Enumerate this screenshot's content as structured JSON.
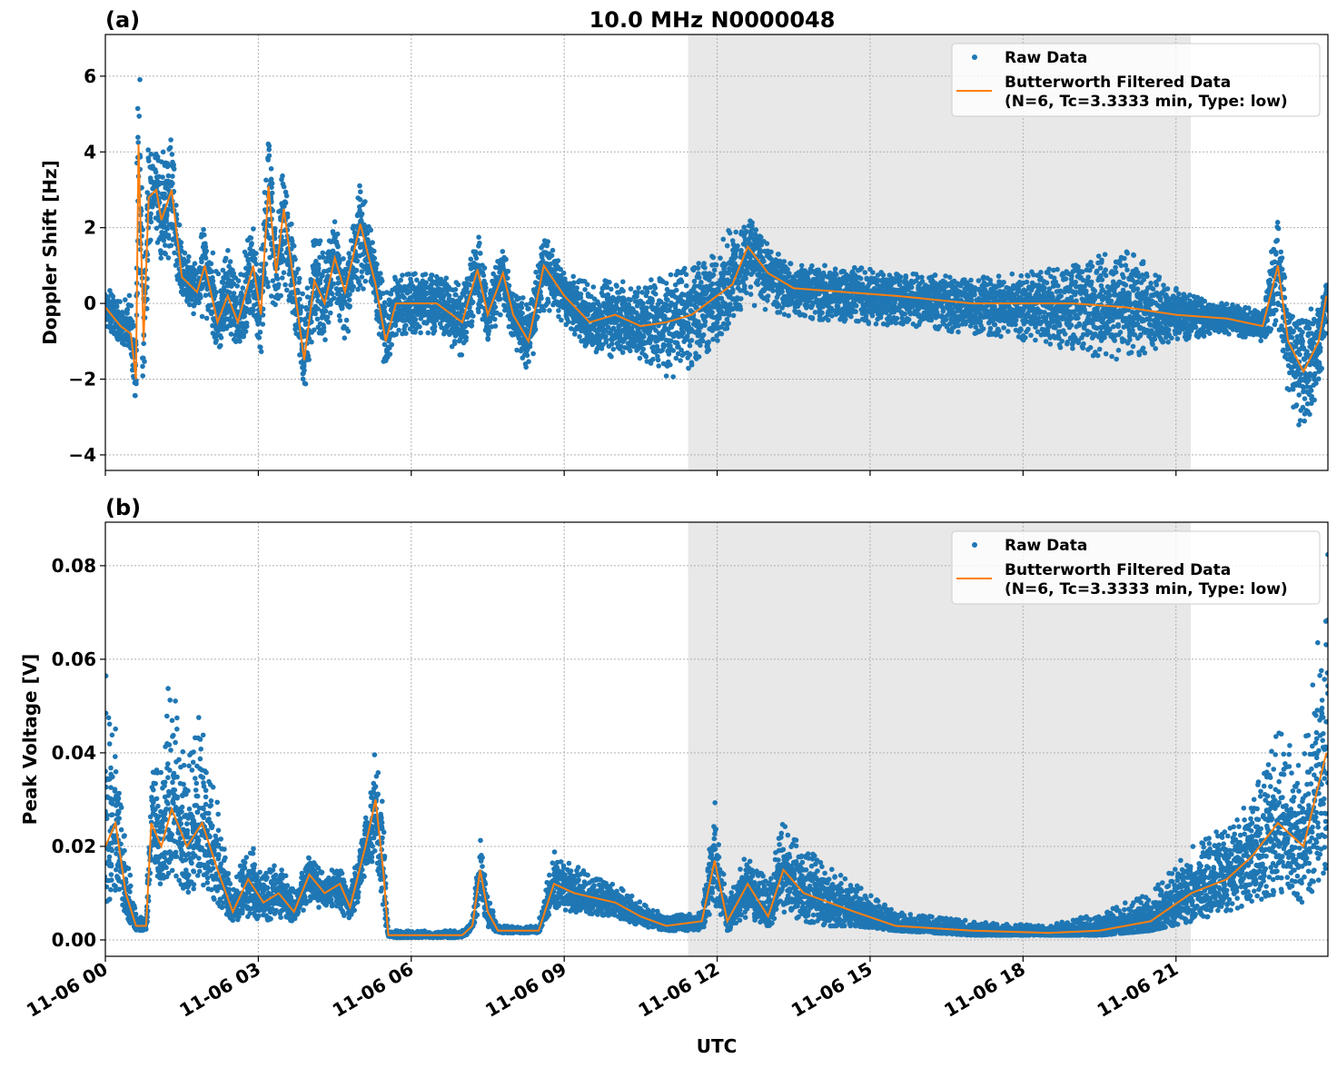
{
  "figure_title": "10.0 MHz N0000048",
  "xlabel": "UTC",
  "colors": {
    "raw": "#1f77b4",
    "filtered": "#ff7f0e",
    "shade": "#e8e8e8",
    "grid": "#b0b0b0"
  },
  "x_ticks": {
    "hours": [
      0,
      3,
      6,
      9,
      12,
      15,
      18,
      21
    ],
    "labels": [
      "11-06 00",
      "11-06 03",
      "11-06 06",
      "11-06 09",
      "11-06 12",
      "11-06 15",
      "11-06 18",
      "11-06 21"
    ]
  },
  "chart_data": [
    {
      "type": "scatter+line",
      "panel_label": "(a)",
      "ylabel": "Doppler Shift [Hz]",
      "xlim_hours": [
        0,
        23.98
      ],
      "ylim": [
        -4.41,
        7.1
      ],
      "y_ticks": [
        6,
        4,
        2,
        0,
        -2,
        -4
      ],
      "y_tick_labels": [
        "6",
        "4",
        "2",
        "0",
        "−2",
        "−4"
      ],
      "grid": true,
      "shaded_interval_hours": [
        11.43,
        21.29
      ],
      "legend": {
        "position": "top-right",
        "raw": "Raw Data",
        "filtered_line1": "Butterworth Filtered Data",
        "filtered_line2": "(N=6, Tc=3.3333 min, Type: low)"
      },
      "series_columns": [
        "hour",
        "filtered",
        "raw_min",
        "raw_max"
      ],
      "series": [
        [
          0.0,
          -0.1,
          -0.6,
          0.4
        ],
        [
          0.3,
          -0.6,
          -1.0,
          0.2
        ],
        [
          0.5,
          -0.8,
          -1.2,
          0.3
        ],
        [
          0.6,
          -2.0,
          -2.6,
          -0.5
        ],
        [
          0.65,
          4.2,
          2.0,
          6.5
        ],
        [
          0.75,
          -1.0,
          -2.2,
          2.0
        ],
        [
          0.85,
          2.8,
          1.5,
          4.2
        ],
        [
          1.0,
          3.0,
          1.8,
          4.3
        ],
        [
          1.1,
          2.2,
          1.2,
          4.0
        ],
        [
          1.3,
          3.0,
          1.0,
          4.7
        ],
        [
          1.5,
          0.7,
          0.3,
          1.6
        ],
        [
          1.8,
          0.3,
          -0.5,
          1.0
        ],
        [
          1.95,
          1.0,
          -0.3,
          2.3
        ],
        [
          2.2,
          -0.5,
          -1.3,
          0.8
        ],
        [
          2.4,
          0.2,
          -0.6,
          1.5
        ],
        [
          2.6,
          -0.5,
          -1.3,
          0.6
        ],
        [
          2.9,
          1.0,
          -0.5,
          2.2
        ],
        [
          3.05,
          -0.3,
          -1.4,
          1.0
        ],
        [
          3.2,
          3.1,
          0.5,
          4.9
        ],
        [
          3.35,
          0.8,
          -0.5,
          2.0
        ],
        [
          3.5,
          2.5,
          0.5,
          4.2
        ],
        [
          3.7,
          0.5,
          -0.5,
          1.5
        ],
        [
          3.9,
          -1.5,
          -2.5,
          0.2
        ],
        [
          4.1,
          0.6,
          -0.5,
          2.0
        ],
        [
          4.3,
          0.0,
          -1.0,
          1.5
        ],
        [
          4.5,
          1.2,
          0.0,
          2.3
        ],
        [
          4.7,
          0.3,
          -1.0,
          1.0
        ],
        [
          5.0,
          2.1,
          0.5,
          3.4
        ],
        [
          5.3,
          0.5,
          -0.5,
          1.5
        ],
        [
          5.5,
          -1.0,
          -1.7,
          0.3
        ],
        [
          5.7,
          0.0,
          -0.8,
          0.8
        ],
        [
          6.5,
          0.0,
          -0.8,
          0.8
        ],
        [
          7.0,
          -0.5,
          -1.5,
          0.5
        ],
        [
          7.3,
          0.9,
          -0.2,
          1.8
        ],
        [
          7.5,
          -0.3,
          -1.0,
          0.5
        ],
        [
          7.8,
          0.8,
          -0.2,
          1.5
        ],
        [
          8.0,
          -0.3,
          -1.0,
          0.4
        ],
        [
          8.3,
          -1.0,
          -1.8,
          0.0
        ],
        [
          8.6,
          1.0,
          -0.2,
          1.8
        ],
        [
          9.0,
          0.2,
          -0.5,
          0.8
        ],
        [
          9.5,
          -0.5,
          -1.3,
          0.6
        ],
        [
          10.0,
          -0.3,
          -1.5,
          0.6
        ],
        [
          10.5,
          -0.6,
          -1.8,
          0.5
        ],
        [
          11.0,
          -0.5,
          -2.0,
          0.8
        ],
        [
          11.5,
          -0.3,
          -1.8,
          1.0
        ],
        [
          12.0,
          0.2,
          -1.0,
          1.5
        ],
        [
          12.3,
          0.5,
          -0.5,
          2.2
        ],
        [
          12.6,
          1.5,
          0.0,
          2.3
        ],
        [
          13.0,
          0.8,
          -0.2,
          1.5
        ],
        [
          13.5,
          0.4,
          -0.4,
          1.0
        ],
        [
          14.5,
          0.3,
          -0.5,
          1.0
        ],
        [
          15.5,
          0.2,
          -0.6,
          0.8
        ],
        [
          17.0,
          0.0,
          -0.8,
          0.7
        ],
        [
          18.0,
          0.0,
          -1.0,
          0.8
        ],
        [
          19.0,
          0.0,
          -1.3,
          1.0
        ],
        [
          20.0,
          -0.1,
          -1.5,
          1.5
        ],
        [
          21.0,
          -0.3,
          -1.0,
          0.4
        ],
        [
          22.0,
          -0.4,
          -0.8,
          0.0
        ],
        [
          22.7,
          -0.6,
          -1.0,
          -0.2
        ],
        [
          23.0,
          1.0,
          -0.5,
          2.5
        ],
        [
          23.2,
          -1.0,
          -2.5,
          0.0
        ],
        [
          23.5,
          -1.8,
          -3.5,
          -0.5
        ],
        [
          23.8,
          -1.0,
          -2.5,
          0.2
        ],
        [
          23.95,
          0.2,
          -0.5,
          0.5
        ]
      ]
    },
    {
      "type": "scatter+line",
      "panel_label": "(b)",
      "ylabel": "Peak Voltage [V]",
      "xlim_hours": [
        0,
        23.98
      ],
      "ylim": [
        -0.0035,
        0.0893
      ],
      "y_ticks": [
        0.08,
        0.06,
        0.04,
        0.02,
        0.0
      ],
      "y_tick_labels": [
        "0.08",
        "0.06",
        "0.04",
        "0.02",
        "0.00"
      ],
      "grid": true,
      "shaded_interval_hours": [
        11.43,
        21.29
      ],
      "legend": {
        "position": "top-right",
        "raw": "Raw Data",
        "filtered_line1": "Butterworth Filtered Data",
        "filtered_line2": "(N=6, Tc=3.3333 min, Type: low)"
      },
      "series_columns": [
        "hour",
        "filtered",
        "raw_min",
        "raw_max"
      ],
      "series": [
        [
          0.0,
          0.02,
          0.008,
          0.06
        ],
        [
          0.2,
          0.025,
          0.01,
          0.045
        ],
        [
          0.4,
          0.01,
          0.005,
          0.02
        ],
        [
          0.6,
          0.003,
          0.002,
          0.005
        ],
        [
          0.8,
          0.003,
          0.002,
          0.005
        ],
        [
          0.9,
          0.025,
          0.012,
          0.035
        ],
        [
          1.1,
          0.02,
          0.012,
          0.04
        ],
        [
          1.3,
          0.028,
          0.015,
          0.06
        ],
        [
          1.6,
          0.02,
          0.01,
          0.04
        ],
        [
          1.9,
          0.025,
          0.012,
          0.05
        ],
        [
          2.2,
          0.015,
          0.008,
          0.03
        ],
        [
          2.5,
          0.006,
          0.004,
          0.01
        ],
        [
          2.8,
          0.013,
          0.005,
          0.022
        ],
        [
          3.1,
          0.008,
          0.004,
          0.014
        ],
        [
          3.4,
          0.01,
          0.005,
          0.017
        ],
        [
          3.7,
          0.006,
          0.004,
          0.01
        ],
        [
          4.0,
          0.014,
          0.008,
          0.018
        ],
        [
          4.3,
          0.01,
          0.006,
          0.014
        ],
        [
          4.6,
          0.012,
          0.006,
          0.016
        ],
        [
          4.8,
          0.007,
          0.004,
          0.01
        ],
        [
          5.1,
          0.02,
          0.01,
          0.025
        ],
        [
          5.3,
          0.03,
          0.02,
          0.041
        ],
        [
          5.45,
          0.015,
          0.005,
          0.03
        ],
        [
          5.55,
          0.001,
          0.0005,
          0.002
        ],
        [
          7.0,
          0.001,
          0.0005,
          0.002
        ],
        [
          7.2,
          0.003,
          0.002,
          0.004
        ],
        [
          7.35,
          0.015,
          0.008,
          0.022
        ],
        [
          7.5,
          0.006,
          0.003,
          0.01
        ],
        [
          7.7,
          0.002,
          0.0015,
          0.003
        ],
        [
          8.5,
          0.002,
          0.0015,
          0.003
        ],
        [
          8.8,
          0.012,
          0.007,
          0.02
        ],
        [
          9.2,
          0.01,
          0.006,
          0.016
        ],
        [
          10.0,
          0.008,
          0.005,
          0.012
        ],
        [
          10.5,
          0.005,
          0.003,
          0.008
        ],
        [
          11.0,
          0.003,
          0.002,
          0.005
        ],
        [
          11.7,
          0.004,
          0.002,
          0.006
        ],
        [
          11.95,
          0.017,
          0.008,
          0.03
        ],
        [
          12.2,
          0.004,
          0.002,
          0.008
        ],
        [
          12.6,
          0.012,
          0.005,
          0.02
        ],
        [
          13.0,
          0.005,
          0.003,
          0.012
        ],
        [
          13.3,
          0.015,
          0.005,
          0.026
        ],
        [
          13.7,
          0.01,
          0.004,
          0.02
        ],
        [
          14.2,
          0.008,
          0.003,
          0.016
        ],
        [
          14.7,
          0.006,
          0.003,
          0.012
        ],
        [
          15.5,
          0.003,
          0.002,
          0.006
        ],
        [
          17.0,
          0.002,
          0.001,
          0.004
        ],
        [
          18.5,
          0.0015,
          0.001,
          0.003
        ],
        [
          19.5,
          0.002,
          0.001,
          0.006
        ],
        [
          20.5,
          0.004,
          0.002,
          0.01
        ],
        [
          21.3,
          0.01,
          0.004,
          0.02
        ],
        [
          22.0,
          0.013,
          0.006,
          0.025
        ],
        [
          22.5,
          0.018,
          0.008,
          0.03
        ],
        [
          23.0,
          0.025,
          0.01,
          0.045
        ],
        [
          23.5,
          0.02,
          0.008,
          0.04
        ],
        [
          23.95,
          0.04,
          0.015,
          0.085
        ]
      ]
    }
  ]
}
